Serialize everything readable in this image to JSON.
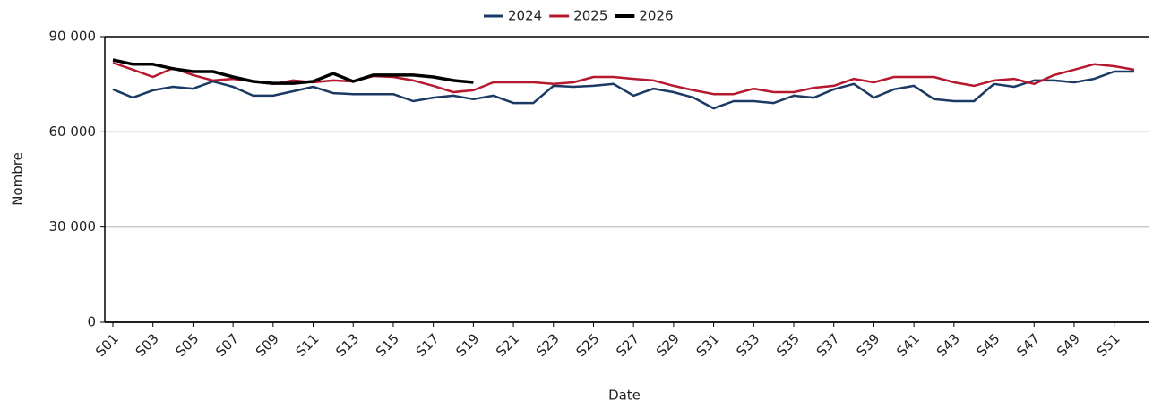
{
  "chart_data": {
    "type": "line",
    "x_label": "Date",
    "y_label": "Nombre",
    "categories": [
      "S01",
      null,
      "S03",
      null,
      "S05",
      null,
      "S07",
      null,
      "S09",
      null,
      "S11",
      null,
      "S13",
      null,
      "S15",
      null,
      "S17",
      null,
      "S19",
      null,
      "S21",
      null,
      "S23",
      null,
      "S25",
      null,
      "S27",
      null,
      "S29",
      null,
      "S31",
      null,
      "S33",
      null,
      "S35",
      null,
      "S37",
      null,
      "S39",
      null,
      "S41",
      null,
      "S43",
      null,
      "S45",
      null,
      "S47",
      null,
      "S49",
      null,
      "S51",
      null
    ],
    "series": [
      {
        "name": "2024",
        "color": "#1b3a63",
        "values": [
          73400,
          70800,
          73100,
          74200,
          73600,
          75900,
          74200,
          71400,
          71400,
          72800,
          74200,
          72200,
          71900,
          71900,
          71900,
          69700,
          70800,
          71400,
          70300,
          71400,
          69100,
          69100,
          74500,
          74200,
          74500,
          75100,
          71400,
          73600,
          72500,
          70800,
          67400,
          69700,
          69700,
          69100,
          71400,
          70800,
          73400,
          75100,
          70800,
          73400,
          74500,
          70300,
          69700,
          69700,
          75100,
          74200,
          76200,
          76200,
          75600,
          76700,
          79000,
          79000
        ]
      },
      {
        "name": "2025",
        "color": "#b5182f",
        "values": [
          81800,
          79600,
          77300,
          80100,
          77900,
          76200,
          76700,
          75900,
          75100,
          76200,
          75600,
          76200,
          75900,
          77600,
          77300,
          76200,
          74500,
          72500,
          73100,
          75600,
          75600,
          75600,
          75100,
          75600,
          77300,
          77300,
          76700,
          76200,
          74500,
          73100,
          71900,
          71900,
          73600,
          72500,
          72500,
          73900,
          74500,
          76700,
          75600,
          77300,
          77300,
          77300,
          75600,
          74500,
          76200,
          76700,
          75100,
          77900,
          79600,
          81300,
          80700,
          79600
        ]
      },
      {
        "name": "2026",
        "color": "#000000",
        "values": [
          82700,
          81300,
          81300,
          79900,
          79000,
          79000,
          77300,
          75900,
          75300,
          75300,
          75900,
          78400,
          75900,
          77900,
          77900,
          77900,
          77300,
          76200,
          75600,
          null,
          null,
          null,
          null,
          null,
          null,
          null,
          null,
          null,
          null,
          null,
          null,
          null,
          null,
          null,
          null,
          null,
          null,
          null,
          null,
          null,
          null,
          null,
          null,
          null,
          null,
          null,
          null,
          null,
          null,
          null,
          null,
          null
        ]
      }
    ],
    "ylim": [
      0,
      90000
    ],
    "yticks": [
      0,
      {
        "value": 30000,
        "label": "30 000"
      },
      {
        "value": 60000,
        "label": "60 000"
      },
      {
        "value": 90000,
        "label": "90 000"
      }
    ],
    "grid": true,
    "legend": "top"
  }
}
